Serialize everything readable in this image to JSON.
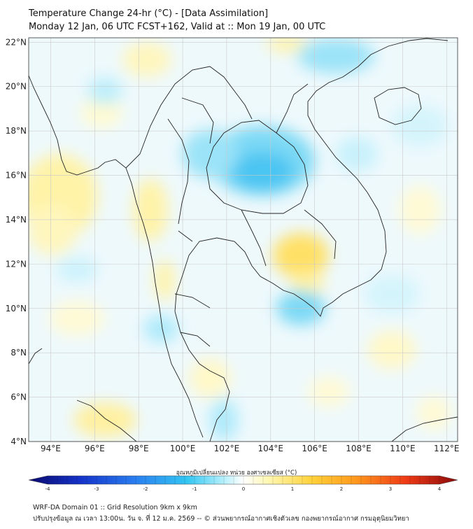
{
  "header": {
    "title_line1": "Temperature Change 24-hr (°C) - [Data Assimilation]",
    "title_line2": "Monday 12 Jan, 06 UTC FCST+162, Valid at :: Mon 19 Jan, 00 UTC"
  },
  "map": {
    "lon_labels": [
      "94°E",
      "96°E",
      "98°E",
      "100°E",
      "102°E",
      "104°E",
      "106°E",
      "108°E",
      "110°E",
      "112°E"
    ],
    "lat_labels": [
      "22°N",
      "20°N",
      "18°N",
      "16°N",
      "14°N",
      "12°N",
      "10°N",
      "8°N",
      "6°N",
      "4°N"
    ],
    "lon_range": [
      93,
      112.5
    ],
    "lat_range": [
      4,
      22.2
    ]
  },
  "colorbar": {
    "title": "อุณหภูมิเปลี่ยนแปลง หน่วย องศาเซลเซียส (°C)",
    "tick_labels": [
      "-4",
      "-3",
      "-2",
      "-1",
      "0",
      "1",
      "2",
      "3",
      "4"
    ],
    "range": [
      -4,
      4
    ],
    "colors": [
      "#0a0a6e",
      "#1432c8",
      "#2a7ff0",
      "#34c6f2",
      "#aeeefb",
      "#ffffff",
      "#fff7b0",
      "#ffd23a",
      "#ff9a1e",
      "#ee3a16",
      "#8a0a0a"
    ]
  },
  "footer": {
    "line1": "WRF-DA Domain 01 :: Grid Resolution 9km x 9km",
    "line2": "ปรับปรุงข้อมูล ณ เวลา 13:00น. วัน จ. ที่ 12 ม.ค. 2569 -- © ส่วนพยากรณ์อากาศเชิงตัวเลข กองพยากรณ์อากาศ กรมอุตุนิยมวิทยา"
  }
}
